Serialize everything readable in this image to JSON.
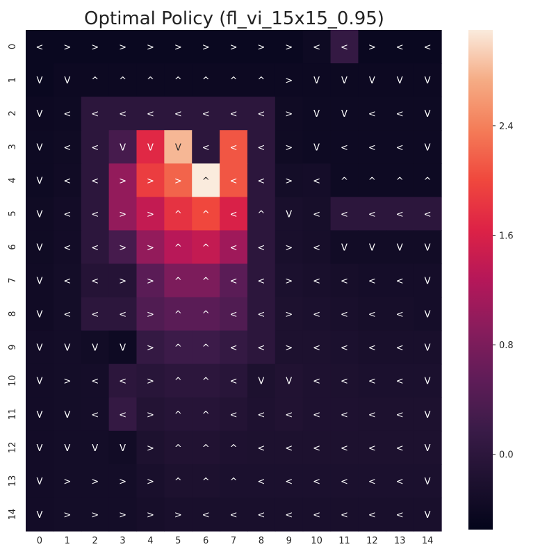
{
  "chart_data": {
    "type": "heatmap",
    "title": "Optimal Policy (fl_vi_15x15_0.95)",
    "xlabel": "",
    "ylabel": "",
    "x_ticks": [
      "0",
      "1",
      "2",
      "3",
      "4",
      "5",
      "6",
      "7",
      "8",
      "9",
      "10",
      "11",
      "12",
      "13",
      "14"
    ],
    "y_ticks": [
      "0",
      "1",
      "2",
      "3",
      "4",
      "5",
      "6",
      "7",
      "8",
      "9",
      "10",
      "11",
      "12",
      "13",
      "14"
    ],
    "colormap": "rocket",
    "vmin": -0.55,
    "vmax": 3.1,
    "colorbar_ticks": [
      "2.4",
      "1.6",
      "0.8",
      "0.0"
    ],
    "colorbar_tick_values": [
      2.4,
      1.6,
      0.8,
      0.0
    ],
    "values": [
      [
        -0.45,
        -0.45,
        -0.45,
        -0.45,
        -0.45,
        -0.45,
        -0.45,
        -0.45,
        -0.45,
        -0.45,
        -0.4,
        0.1,
        -0.45,
        -0.45,
        -0.45
      ],
      [
        -0.45,
        -0.42,
        -0.42,
        -0.42,
        -0.42,
        -0.42,
        -0.42,
        -0.42,
        -0.42,
        -0.42,
        -0.42,
        -0.42,
        -0.42,
        -0.42,
        -0.42
      ],
      [
        -0.42,
        -0.4,
        0.0,
        0.0,
        0.0,
        0.0,
        0.0,
        0.0,
        0.0,
        -0.38,
        -0.4,
        -0.4,
        -0.4,
        -0.4,
        -0.4
      ],
      [
        -0.4,
        -0.38,
        0.0,
        0.3,
        1.7,
        2.8,
        0.0,
        2.1,
        0.0,
        -0.38,
        -0.4,
        -0.4,
        -0.4,
        -0.4,
        -0.4
      ],
      [
        -0.4,
        -0.36,
        0.0,
        1.0,
        1.9,
        2.2,
        3.1,
        2.1,
        0.0,
        -0.32,
        -0.3,
        -0.4,
        -0.4,
        -0.4,
        -0.4
      ],
      [
        -0.38,
        -0.34,
        0.0,
        1.0,
        1.4,
        1.8,
        2.0,
        1.6,
        0.0,
        -0.25,
        -0.28,
        0.0,
        0.0,
        0.0,
        0.0
      ],
      [
        -0.38,
        -0.34,
        0.0,
        0.3,
        1.0,
        1.3,
        1.4,
        1.1,
        0.0,
        -0.25,
        -0.28,
        -0.35,
        -0.35,
        -0.35,
        -0.35
      ],
      [
        -0.36,
        -0.32,
        -0.1,
        -0.1,
        0.5,
        0.8,
        0.8,
        0.5,
        0.0,
        -0.22,
        -0.25,
        -0.28,
        -0.3,
        -0.3,
        -0.3
      ],
      [
        -0.36,
        -0.32,
        0.0,
        0.0,
        0.4,
        0.5,
        0.5,
        0.4,
        0.0,
        -0.2,
        -0.22,
        -0.25,
        -0.28,
        -0.28,
        -0.3
      ],
      [
        -0.34,
        -0.32,
        -0.35,
        -0.4,
        0.1,
        0.2,
        0.2,
        0.1,
        0.0,
        -0.2,
        -0.2,
        -0.22,
        -0.25,
        -0.25,
        -0.25
      ],
      [
        -0.34,
        -0.32,
        -0.3,
        0.0,
        -0.05,
        0.0,
        0.0,
        -0.05,
        -0.2,
        -0.15,
        -0.18,
        -0.2,
        -0.22,
        -0.22,
        -0.22
      ],
      [
        -0.34,
        -0.32,
        -0.3,
        0.1,
        -0.12,
        -0.08,
        -0.08,
        -0.12,
        -0.18,
        -0.15,
        -0.18,
        -0.18,
        -0.2,
        -0.2,
        -0.2
      ],
      [
        -0.34,
        -0.32,
        -0.32,
        -0.35,
        -0.2,
        -0.15,
        -0.15,
        -0.18,
        -0.2,
        -0.2,
        -0.2,
        -0.2,
        -0.2,
        -0.2,
        -0.2
      ],
      [
        -0.34,
        -0.32,
        -0.32,
        -0.32,
        -0.25,
        -0.2,
        -0.2,
        -0.22,
        -0.22,
        -0.22,
        -0.22,
        -0.22,
        -0.22,
        -0.22,
        -0.22
      ],
      [
        -0.34,
        -0.32,
        -0.32,
        -0.32,
        -0.28,
        -0.25,
        -0.25,
        -0.25,
        -0.25,
        -0.25,
        -0.25,
        -0.25,
        -0.25,
        -0.25,
        -0.25
      ]
    ],
    "annotations": [
      [
        "<",
        ">",
        ">",
        ">",
        ">",
        ">",
        ">",
        ">",
        ">",
        ">",
        "<",
        "<",
        ">",
        "<",
        "<"
      ],
      [
        "V",
        "V",
        "^",
        "^",
        "^",
        "^",
        "^",
        "^",
        "^",
        ">",
        "V",
        "V",
        "V",
        "V",
        "V"
      ],
      [
        "V",
        "<",
        "<",
        "<",
        "<",
        "<",
        "<",
        "<",
        "<",
        ">",
        "V",
        "V",
        "<",
        "<",
        "V"
      ],
      [
        "V",
        "<",
        "<",
        "V",
        "V",
        "V",
        "<",
        "<",
        "<",
        ">",
        "V",
        "<",
        "<",
        "<",
        "V"
      ],
      [
        "V",
        "<",
        "<",
        ">",
        ">",
        ">",
        "^",
        "<",
        "<",
        ">",
        "<",
        "^",
        "^",
        "^",
        "^"
      ],
      [
        "V",
        "<",
        "<",
        ">",
        ">",
        "^",
        "^",
        "<",
        "^",
        "V",
        "<",
        "<",
        "<",
        "<",
        "<"
      ],
      [
        "V",
        "<",
        "<",
        ">",
        ">",
        "^",
        "^",
        "<",
        "<",
        ">",
        "<",
        "V",
        "V",
        "V",
        "V"
      ],
      [
        "V",
        "<",
        "<",
        ">",
        ">",
        "^",
        "^",
        "<",
        "<",
        ">",
        "<",
        "<",
        "<",
        "<",
        "V"
      ],
      [
        "V",
        "<",
        "<",
        "<",
        ">",
        "^",
        "^",
        "<",
        "<",
        ">",
        "<",
        "<",
        "<",
        "<",
        "V"
      ],
      [
        "V",
        "V",
        "V",
        "V",
        ">",
        "^",
        "^",
        "<",
        "<",
        ">",
        "<",
        "<",
        "<",
        "<",
        "V"
      ],
      [
        "V",
        ">",
        "<",
        "<",
        ">",
        "^",
        "^",
        "<",
        "V",
        "V",
        "<",
        "<",
        "<",
        "<",
        "V"
      ],
      [
        "V",
        "V",
        "<",
        "<",
        ">",
        "^",
        "^",
        "<",
        "<",
        "<",
        "<",
        "<",
        "<",
        "<",
        "V"
      ],
      [
        "V",
        "V",
        "V",
        "V",
        ">",
        "^",
        "^",
        "^",
        "<",
        "<",
        "<",
        "<",
        "<",
        "<",
        "V"
      ],
      [
        "V",
        ">",
        ">",
        ">",
        ">",
        "^",
        "^",
        "^",
        "<",
        "<",
        "<",
        "<",
        "<",
        "<",
        "V"
      ],
      [
        "V",
        ">",
        ">",
        ">",
        ">",
        ">",
        "<",
        "<",
        "<",
        "<",
        "<",
        "<",
        "<",
        "<",
        "V"
      ]
    ],
    "grid": false,
    "legend": "none"
  }
}
